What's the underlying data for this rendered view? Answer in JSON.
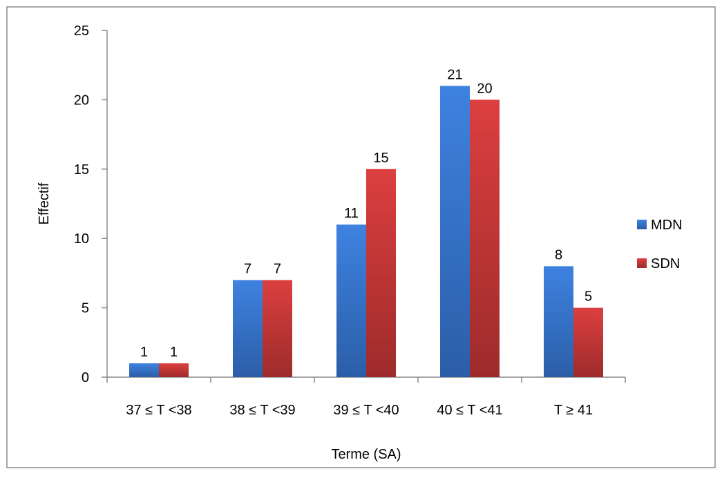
{
  "chart_data": {
    "type": "bar",
    "title": "",
    "xlabel": "Terme (SA)",
    "ylabel": "Effectif",
    "categories": [
      "37 ≤ T <38",
      "38 ≤ T <39",
      "39 ≤ T <40",
      "40 ≤ T <41",
      "T ≥ 41"
    ],
    "series": [
      {
        "name": "MDN",
        "values": [
          1,
          7,
          11,
          21,
          8
        ],
        "color": "#3b7dd8"
      },
      {
        "name": "SDN",
        "values": [
          1,
          7,
          15,
          20,
          5
        ],
        "color": "#d43b3b"
      }
    ],
    "ylim": [
      0,
      25
    ],
    "yticks": [
      0,
      5,
      10,
      15,
      20,
      25
    ],
    "grid": false,
    "legend": "right",
    "data_labels": true
  }
}
